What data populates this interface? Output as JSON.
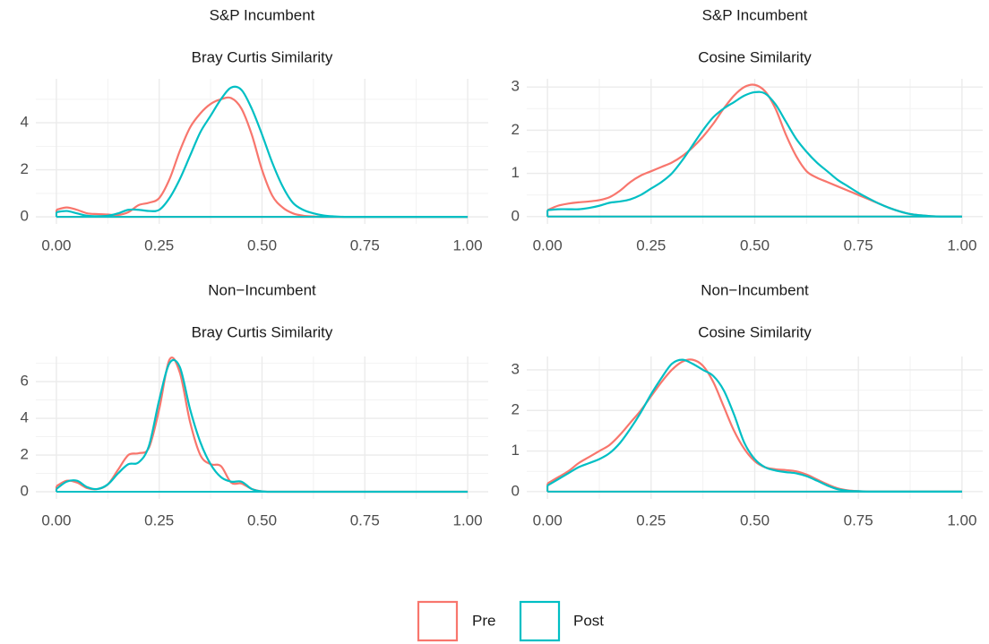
{
  "chart_data": [
    {
      "type": "line",
      "title": "S&P Incumbent",
      "subtitle": "Bray Curtis Similarity",
      "legend": "bottom",
      "grid": true,
      "x": [
        0,
        0.025,
        0.05,
        0.075,
        0.1,
        0.125,
        0.15,
        0.175,
        0.2,
        0.225,
        0.25,
        0.275,
        0.3,
        0.325,
        0.35,
        0.375,
        0.4,
        0.425,
        0.45,
        0.475,
        0.5,
        0.525,
        0.55,
        0.575,
        0.6,
        0.625,
        0.65,
        0.675,
        0.7,
        0.725,
        0.75,
        0.775,
        0.8,
        0.825,
        0.85,
        0.875,
        0.9,
        0.925,
        0.95,
        0.975,
        1
      ],
      "series": [
        {
          "name": "Pre",
          "color": "#F8766D",
          "values": [
            0.3,
            0.4,
            0.3,
            0.15,
            0.12,
            0.1,
            0.08,
            0.2,
            0.5,
            0.6,
            0.8,
            1.6,
            2.8,
            3.8,
            4.4,
            4.8,
            5.0,
            5.05,
            4.6,
            3.5,
            2.0,
            0.9,
            0.4,
            0.15,
            0.05,
            0.02,
            0,
            0,
            0,
            0,
            0,
            0,
            0,
            0,
            0,
            0,
            0,
            0,
            0,
            0,
            0
          ]
        },
        {
          "name": "Post",
          "color": "#00BFC4",
          "values": [
            0.2,
            0.25,
            0.15,
            0.05,
            0.03,
            0.05,
            0.15,
            0.3,
            0.3,
            0.25,
            0.3,
            0.8,
            1.6,
            2.6,
            3.6,
            4.3,
            5.0,
            5.5,
            5.4,
            4.6,
            3.5,
            2.3,
            1.3,
            0.6,
            0.3,
            0.15,
            0.06,
            0.02,
            0,
            0,
            0,
            0,
            0,
            0,
            0,
            0,
            0,
            0,
            0,
            0,
            0
          ]
        }
      ],
      "xlim": [
        -0.05,
        1.05
      ],
      "xticks": [
        {
          "value": 0,
          "label": "0.00"
        },
        {
          "value": 0.25,
          "label": "0.25"
        },
        {
          "value": 0.5,
          "label": "0.50"
        },
        {
          "value": 0.75,
          "label": "0.75"
        },
        {
          "value": 1,
          "label": "1.00"
        }
      ],
      "xminor": [
        0.125,
        0.375,
        0.625,
        0.875
      ],
      "ylim": [
        -0.3,
        5.87
      ],
      "yticks": [
        0,
        2,
        4
      ],
      "yminor": [
        1,
        3,
        5
      ]
    },
    {
      "type": "line",
      "title": "S&P Incumbent",
      "subtitle": "Cosine Similarity",
      "grid": true,
      "x": [
        0,
        0.025,
        0.05,
        0.075,
        0.1,
        0.125,
        0.15,
        0.175,
        0.2,
        0.225,
        0.25,
        0.275,
        0.3,
        0.325,
        0.35,
        0.375,
        0.4,
        0.425,
        0.45,
        0.475,
        0.5,
        0.525,
        0.55,
        0.575,
        0.6,
        0.625,
        0.65,
        0.675,
        0.7,
        0.725,
        0.75,
        0.775,
        0.8,
        0.825,
        0.85,
        0.875,
        0.9,
        0.925,
        0.95,
        0.975,
        1
      ],
      "series": [
        {
          "name": "Pre",
          "color": "#F8766D",
          "values": [
            0.15,
            0.25,
            0.3,
            0.33,
            0.35,
            0.38,
            0.45,
            0.6,
            0.8,
            0.95,
            1.05,
            1.15,
            1.25,
            1.4,
            1.6,
            1.85,
            2.15,
            2.5,
            2.8,
            3.0,
            3.05,
            2.9,
            2.5,
            1.9,
            1.4,
            1.05,
            0.9,
            0.8,
            0.7,
            0.6,
            0.5,
            0.4,
            0.3,
            0.2,
            0.12,
            0.06,
            0.03,
            0.01,
            0,
            0,
            0
          ]
        },
        {
          "name": "Post",
          "color": "#00BFC4",
          "values": [
            0.15,
            0.17,
            0.17,
            0.17,
            0.2,
            0.25,
            0.32,
            0.35,
            0.4,
            0.5,
            0.65,
            0.8,
            1.0,
            1.3,
            1.65,
            2.0,
            2.3,
            2.5,
            2.65,
            2.8,
            2.88,
            2.85,
            2.6,
            2.2,
            1.8,
            1.5,
            1.25,
            1.05,
            0.85,
            0.7,
            0.55,
            0.42,
            0.3,
            0.2,
            0.12,
            0.06,
            0.03,
            0.01,
            0,
            0,
            0
          ]
        }
      ],
      "xlim": [
        -0.05,
        1.05
      ],
      "xticks": [
        {
          "value": 0,
          "label": "0.00"
        },
        {
          "value": 0.25,
          "label": "0.25"
        },
        {
          "value": 0.5,
          "label": "0.50"
        },
        {
          "value": 0.75,
          "label": "0.75"
        },
        {
          "value": 1,
          "label": "1.00"
        }
      ],
      "xminor": [
        0.125,
        0.375,
        0.625,
        0.875
      ],
      "ylim": [
        -0.17,
        3.19
      ],
      "yticks": [
        0,
        1,
        2,
        3
      ],
      "yminor": [
        0.5,
        1.5,
        2.5
      ]
    },
    {
      "type": "line",
      "title": "Non−Incumbent",
      "subtitle": "Bray Curtis Similarity",
      "grid": true,
      "x": [
        0,
        0.025,
        0.05,
        0.075,
        0.1,
        0.125,
        0.15,
        0.175,
        0.2,
        0.225,
        0.25,
        0.275,
        0.3,
        0.325,
        0.35,
        0.375,
        0.4,
        0.425,
        0.45,
        0.475,
        0.5,
        0.525,
        0.55,
        0.575,
        0.6,
        0.625,
        0.65,
        0.675,
        0.7,
        0.725,
        0.75,
        0.775,
        0.8,
        0.825,
        0.85,
        0.875,
        0.9,
        0.925,
        0.95,
        0.975,
        1
      ],
      "series": [
        {
          "name": "Pre",
          "color": "#F8766D",
          "values": [
            0.3,
            0.6,
            0.5,
            0.2,
            0.15,
            0.4,
            1.2,
            2.0,
            2.1,
            2.4,
            4.5,
            7.2,
            6.5,
            3.8,
            2.0,
            1.5,
            1.4,
            0.5,
            0.45,
            0.15,
            0.02,
            0,
            0,
            0,
            0,
            0,
            0,
            0,
            0,
            0,
            0,
            0,
            0,
            0,
            0,
            0,
            0,
            0,
            0,
            0,
            0
          ]
        },
        {
          "name": "Post",
          "color": "#00BFC4",
          "values": [
            0.15,
            0.55,
            0.6,
            0.25,
            0.15,
            0.4,
            1.0,
            1.5,
            1.6,
            2.5,
            5.0,
            7.0,
            6.8,
            4.5,
            2.7,
            1.5,
            0.8,
            0.55,
            0.55,
            0.15,
            0.02,
            0,
            0,
            0,
            0,
            0,
            0,
            0,
            0,
            0,
            0,
            0,
            0,
            0,
            0,
            0,
            0,
            0,
            0,
            0,
            0
          ]
        }
      ],
      "xlim": [
        -0.05,
        1.05
      ],
      "xticks": [
        {
          "value": 0,
          "label": "0.00"
        },
        {
          "value": 0.25,
          "label": "0.25"
        },
        {
          "value": 0.5,
          "label": "0.50"
        },
        {
          "value": 0.75,
          "label": "0.75"
        },
        {
          "value": 1,
          "label": "1.00"
        }
      ],
      "xminor": [
        0.125,
        0.375,
        0.625,
        0.875
      ],
      "ylim": [
        -0.39,
        7.37
      ],
      "yticks": [
        0,
        2,
        4,
        6
      ],
      "yminor": [
        1,
        3,
        5,
        7
      ]
    },
    {
      "type": "line",
      "title": "Non−Incumbent",
      "subtitle": "Cosine Similarity",
      "grid": true,
      "x": [
        0,
        0.025,
        0.05,
        0.075,
        0.1,
        0.125,
        0.15,
        0.175,
        0.2,
        0.225,
        0.25,
        0.275,
        0.3,
        0.325,
        0.35,
        0.375,
        0.4,
        0.425,
        0.45,
        0.475,
        0.5,
        0.525,
        0.55,
        0.575,
        0.6,
        0.625,
        0.65,
        0.675,
        0.7,
        0.725,
        0.75,
        0.775,
        0.8,
        0.825,
        0.85,
        0.875,
        0.9,
        0.925,
        0.95,
        0.975,
        1
      ],
      "series": [
        {
          "name": "Pre",
          "color": "#F8766D",
          "values": [
            0.2,
            0.35,
            0.5,
            0.7,
            0.85,
            1.0,
            1.15,
            1.4,
            1.7,
            2.0,
            2.35,
            2.7,
            3.0,
            3.2,
            3.25,
            3.1,
            2.7,
            2.1,
            1.5,
            1.05,
            0.75,
            0.6,
            0.55,
            0.53,
            0.5,
            0.42,
            0.3,
            0.18,
            0.08,
            0.03,
            0.01,
            0,
            0,
            0,
            0,
            0,
            0,
            0,
            0,
            0,
            0
          ]
        },
        {
          "name": "Post",
          "color": "#00BFC4",
          "values": [
            0.15,
            0.3,
            0.45,
            0.6,
            0.7,
            0.8,
            0.95,
            1.2,
            1.55,
            1.95,
            2.4,
            2.8,
            3.15,
            3.25,
            3.15,
            3.0,
            2.85,
            2.5,
            1.9,
            1.2,
            0.8,
            0.6,
            0.52,
            0.48,
            0.45,
            0.38,
            0.27,
            0.15,
            0.06,
            0.02,
            0.01,
            0,
            0,
            0,
            0,
            0,
            0,
            0,
            0,
            0,
            0
          ]
        }
      ],
      "xlim": [
        -0.05,
        1.05
      ],
      "xticks": [
        {
          "value": 0,
          "label": "0.00"
        },
        {
          "value": 0.25,
          "label": "0.25"
        },
        {
          "value": 0.5,
          "label": "0.50"
        },
        {
          "value": 0.75,
          "label": "0.75"
        },
        {
          "value": 1,
          "label": "1.00"
        }
      ],
      "xminor": [
        0.125,
        0.375,
        0.625,
        0.875
      ],
      "ylim": [
        -0.18,
        3.33
      ],
      "yticks": [
        0,
        1,
        2,
        3
      ],
      "yminor": [
        0.5,
        1.5,
        2.5
      ]
    }
  ]
}
